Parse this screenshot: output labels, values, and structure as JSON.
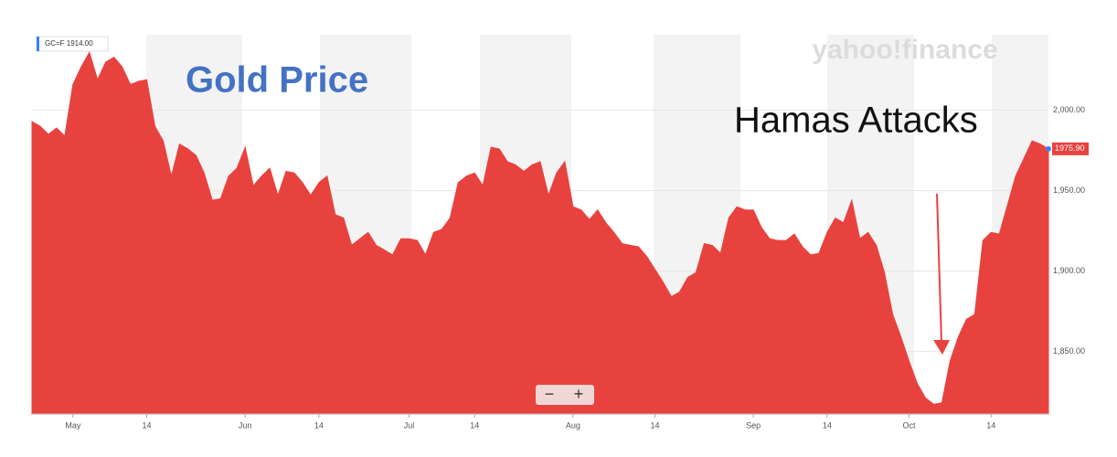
{
  "chart_data": {
    "type": "area",
    "title": "Gold Price",
    "annotation": "Hamas Attacks",
    "brand": "yahoo!finance",
    "legend_label": "GC=F 1914.00",
    "last_price_label": "1975.90",
    "color": "#e8423f",
    "categories": [
      null,
      null,
      null,
      null,
      null,
      "May",
      null,
      null,
      null,
      null,
      null,
      null,
      null,
      null,
      "14",
      null,
      null,
      null,
      null,
      null,
      null,
      null,
      null,
      null,
      null,
      null,
      "Jun",
      null,
      null,
      null,
      null,
      null,
      null,
      null,
      null,
      "14",
      null,
      null,
      null,
      null,
      null,
      null,
      null,
      null,
      null,
      null,
      "Jul",
      null,
      null,
      null,
      null,
      null,
      null,
      null,
      "14",
      null,
      null,
      null,
      null,
      null,
      null,
      null,
      null,
      null,
      null,
      null,
      "Aug",
      null,
      null,
      null,
      null,
      null,
      null,
      null,
      null,
      null,
      "14",
      null,
      null,
      null,
      null,
      null,
      null,
      null,
      null,
      null,
      null,
      null,
      "Sep",
      null,
      null,
      null,
      null,
      null,
      null,
      null,
      null,
      "14",
      null,
      null,
      null,
      null,
      null,
      null,
      null,
      null,
      null,
      "Oct",
      null,
      null,
      null,
      null,
      null,
      null,
      null,
      null,
      null,
      "14",
      null,
      null,
      null,
      null,
      null,
      null,
      null
    ],
    "values": [
      1993,
      1990,
      1985,
      1989,
      1984,
      2016,
      2027,
      2036,
      2019,
      2030,
      2033,
      2027,
      2016,
      2018,
      2019,
      1990,
      1981,
      1959,
      1979,
      1976,
      1972,
      1961,
      1944,
      1945,
      1959,
      1964,
      1977,
      1953,
      1959,
      1964,
      1947,
      1962,
      1961,
      1955,
      1947,
      1955,
      1959,
      1935,
      1933,
      1916,
      1920,
      1924,
      1916,
      1913,
      1910,
      1920,
      1920,
      1919,
      1910,
      1924,
      1926,
      1933,
      1955,
      1959,
      1961,
      1953,
      1977,
      1976,
      1968,
      1966,
      1962,
      1966,
      1968,
      1947,
      1961,
      1968,
      1940,
      1938,
      1932,
      1938,
      1930,
      1924,
      1917,
      1916,
      1915,
      1909,
      1901,
      1893,
      1884,
      1887,
      1896,
      1899,
      1917,
      1916,
      1911,
      1933,
      1940,
      1938,
      1938,
      1927,
      1920,
      1919,
      1919,
      1923,
      1915,
      1910,
      1911,
      1924,
      1933,
      1930,
      1944,
      1920,
      1924,
      1916,
      1899,
      1873,
      1859,
      1844,
      1830,
      1821,
      1817,
      1818,
      1844,
      1859,
      1870,
      1873,
      1919,
      1924,
      1923,
      1941,
      1959,
      1970,
      1981,
      1979,
      1976
    ],
    "ylim": [
      1811,
      2047
    ],
    "yticks": [
      {
        "value": 1850,
        "label": "1,850.00"
      },
      {
        "value": 1900,
        "label": "1,900.00"
      },
      {
        "value": 1950,
        "label": "1,950.00"
      },
      {
        "value": 2000,
        "label": "2,000.00"
      }
    ],
    "grid": true
  }
}
